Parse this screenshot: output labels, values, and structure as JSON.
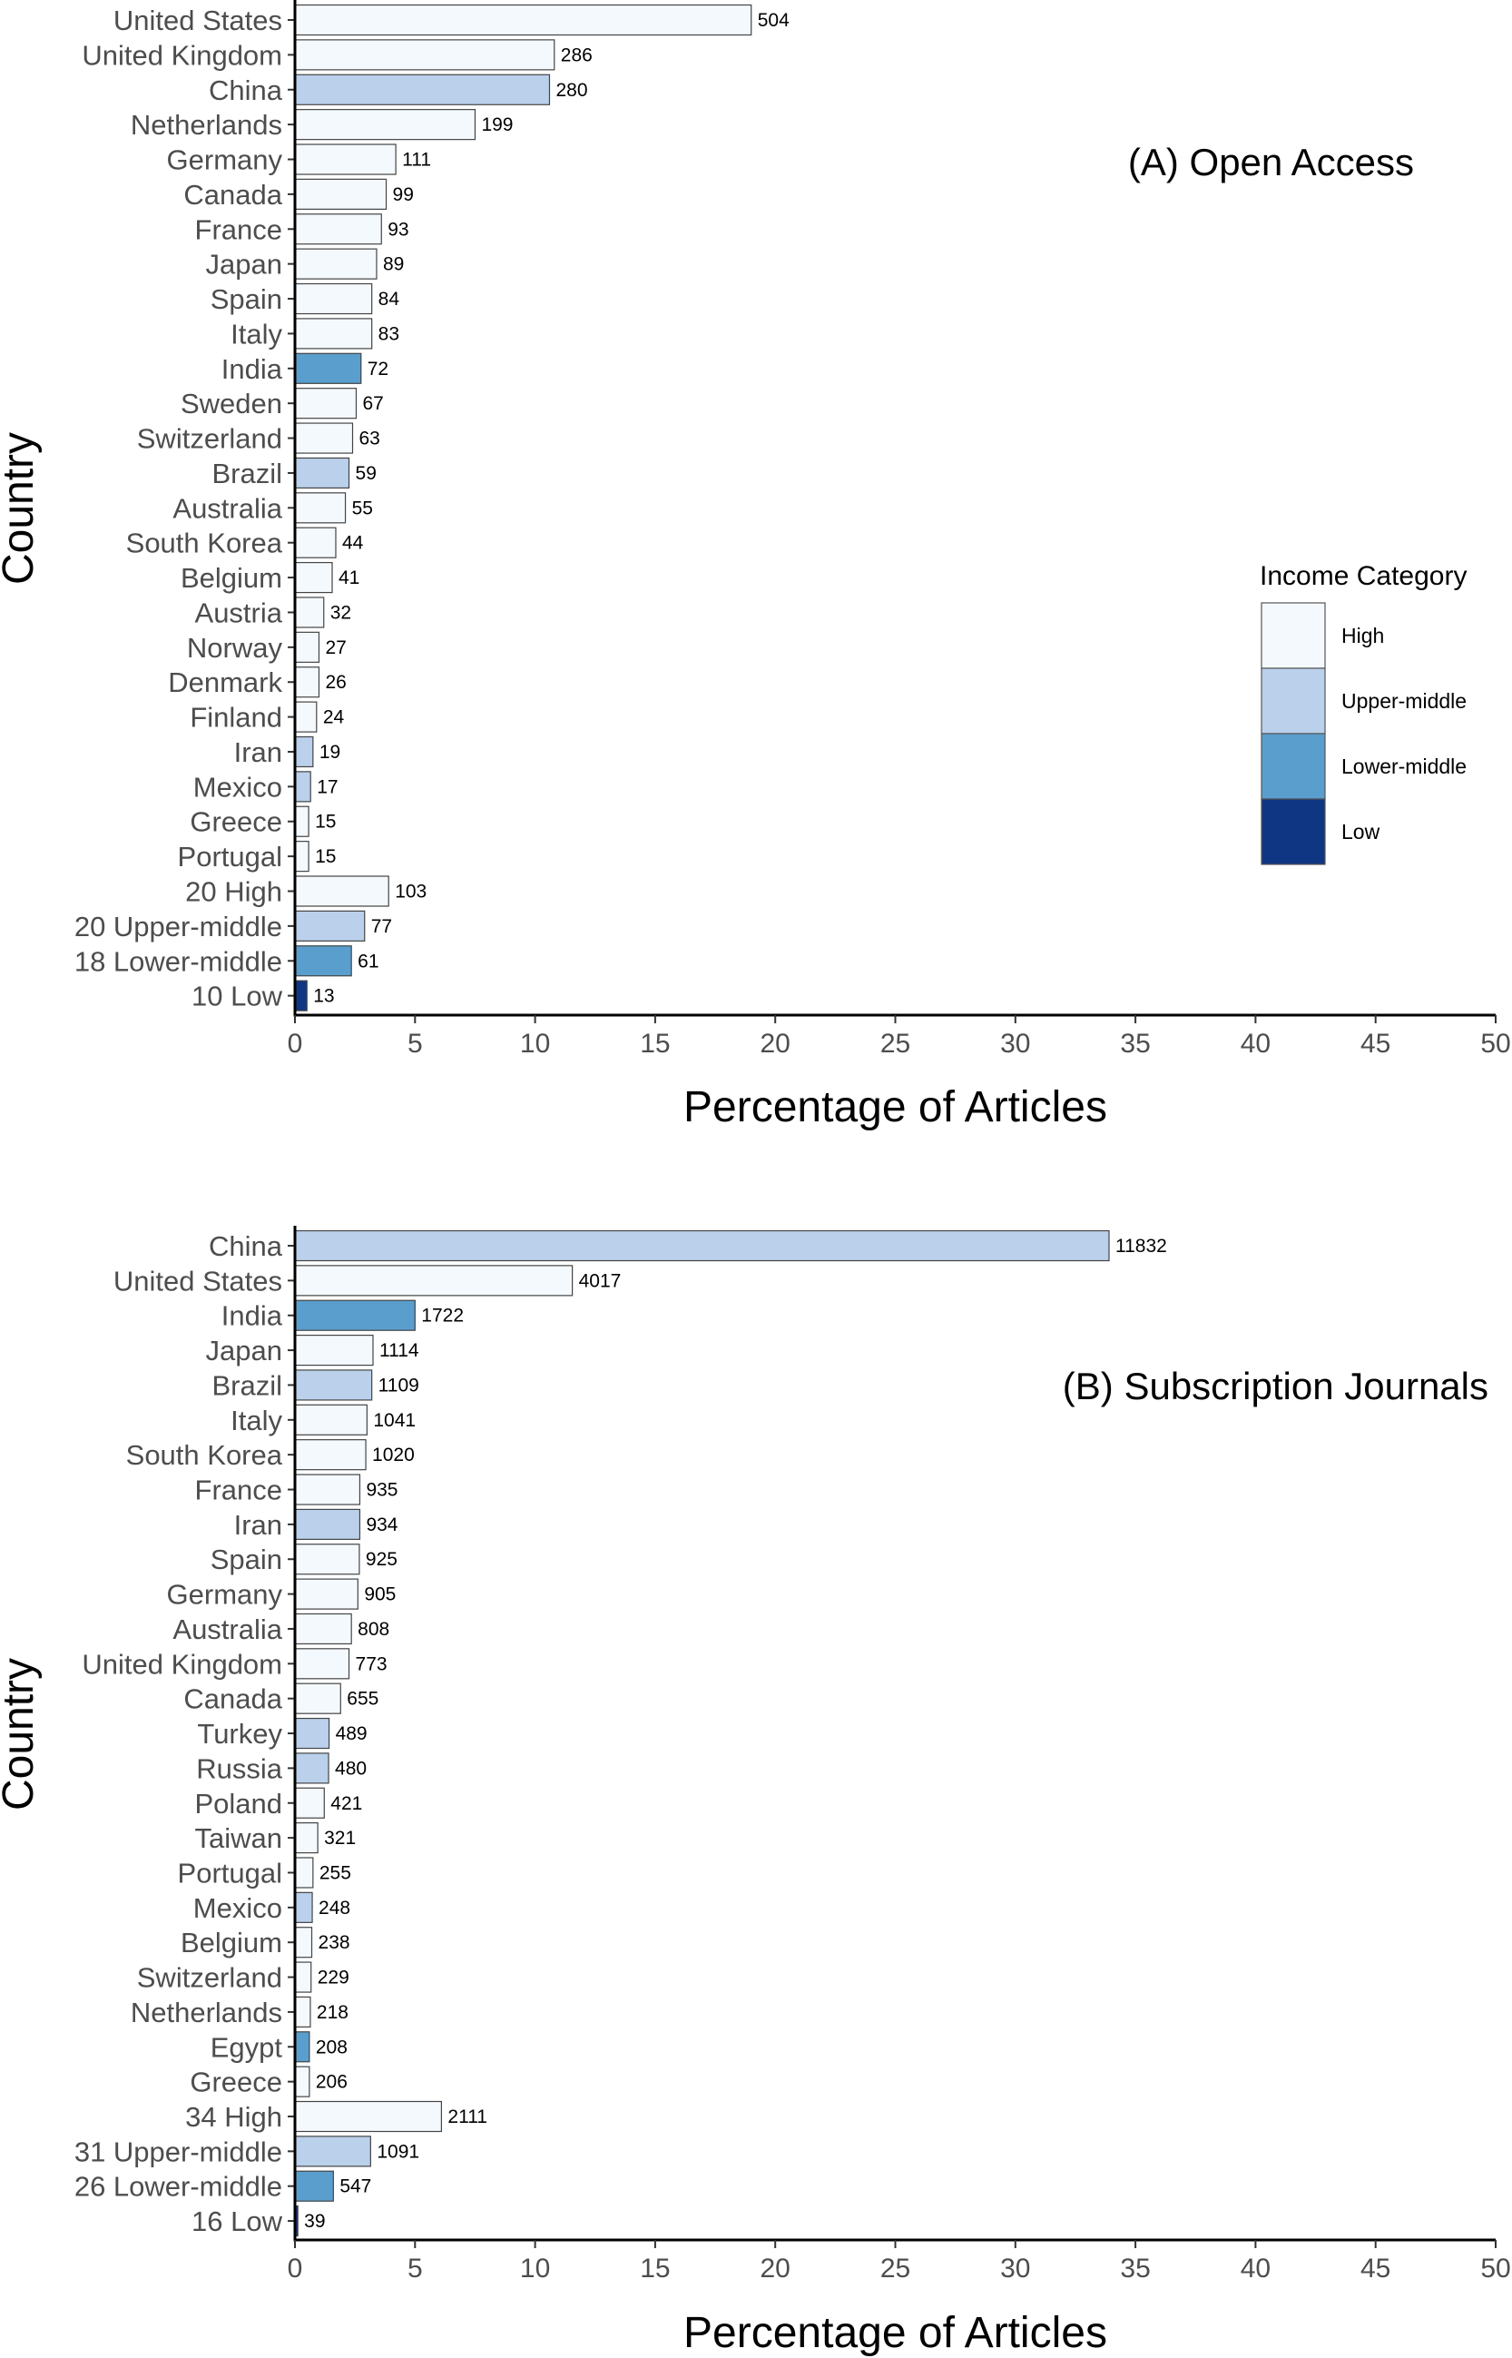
{
  "legend": {
    "title": "Income Category",
    "entries": [
      {
        "key": "High",
        "label": "High",
        "color": "#f4f9fe"
      },
      {
        "key": "Upper-middle",
        "label": "Upper-middle",
        "color": "#bad0eb"
      },
      {
        "key": "Lower-middle",
        "label": "Lower-middle",
        "color": "#5a9ecd"
      },
      {
        "key": "Low",
        "label": "Low",
        "color": "#0f3682"
      }
    ]
  },
  "chart_data": [
    {
      "type": "bar",
      "orientation": "horizontal",
      "title": "(A) Open Access",
      "xlabel": "Percentage of Articles",
      "ylabel": "Country",
      "xlim": [
        0,
        50
      ],
      "xticks": [
        0,
        5,
        10,
        15,
        20,
        25,
        30,
        35,
        40,
        45,
        50
      ],
      "grid": false,
      "bars": [
        {
          "category": "United States",
          "percent": 19.0,
          "count": "504",
          "income": "High"
        },
        {
          "category": "United Kingdom",
          "percent": 10.8,
          "count": "286",
          "income": "High"
        },
        {
          "category": "China",
          "percent": 10.6,
          "count": "280",
          "income": "Upper-middle"
        },
        {
          "category": "Netherlands",
          "percent": 7.5,
          "count": "199",
          "income": "High"
        },
        {
          "category": "Germany",
          "percent": 4.2,
          "count": "111",
          "income": "High"
        },
        {
          "category": "Canada",
          "percent": 3.8,
          "count": "99",
          "income": "High"
        },
        {
          "category": "France",
          "percent": 3.6,
          "count": "93",
          "income": "High"
        },
        {
          "category": "Japan",
          "percent": 3.4,
          "count": "89",
          "income": "High"
        },
        {
          "category": "Spain",
          "percent": 3.2,
          "count": "84",
          "income": "High"
        },
        {
          "category": "Italy",
          "percent": 3.2,
          "count": "83",
          "income": "High"
        },
        {
          "category": "India",
          "percent": 2.75,
          "count": "72",
          "income": "Lower-middle"
        },
        {
          "category": "Sweden",
          "percent": 2.55,
          "count": "67",
          "income": "High"
        },
        {
          "category": "Switzerland",
          "percent": 2.4,
          "count": "63",
          "income": "High"
        },
        {
          "category": "Brazil",
          "percent": 2.25,
          "count": "59",
          "income": "Upper-middle"
        },
        {
          "category": "Australia",
          "percent": 2.1,
          "count": "55",
          "income": "High"
        },
        {
          "category": "South Korea",
          "percent": 1.7,
          "count": "44",
          "income": "High"
        },
        {
          "category": "Belgium",
          "percent": 1.55,
          "count": "41",
          "income": "High"
        },
        {
          "category": "Austria",
          "percent": 1.2,
          "count": "32",
          "income": "High"
        },
        {
          "category": "Norway",
          "percent": 1.0,
          "count": "27",
          "income": "High"
        },
        {
          "category": "Denmark",
          "percent": 1.0,
          "count": "26",
          "income": "High"
        },
        {
          "category": "Finland",
          "percent": 0.9,
          "count": "24",
          "income": "High"
        },
        {
          "category": "Iran",
          "percent": 0.75,
          "count": "19",
          "income": "Upper-middle"
        },
        {
          "category": "Mexico",
          "percent": 0.65,
          "count": "17",
          "income": "Upper-middle"
        },
        {
          "category": "Greece",
          "percent": 0.57,
          "count": "15",
          "income": "High"
        },
        {
          "category": "Portugal",
          "percent": 0.57,
          "count": "15",
          "income": "High"
        },
        {
          "category": "20 High",
          "percent": 3.9,
          "count": "103",
          "income": "High"
        },
        {
          "category": "20 Upper-middle",
          "percent": 2.9,
          "count": "77",
          "income": "Upper-middle"
        },
        {
          "category": "18 Lower-middle",
          "percent": 2.35,
          "count": "61",
          "income": "Lower-middle"
        },
        {
          "category": "10 Low",
          "percent": 0.5,
          "count": "13",
          "income": "Low"
        }
      ]
    },
    {
      "type": "bar",
      "orientation": "horizontal",
      "title": "(B) Subscription Journals",
      "xlabel": "Percentage of Articles",
      "ylabel": "Country",
      "xlim": [
        0,
        50
      ],
      "xticks": [
        0,
        5,
        10,
        15,
        20,
        25,
        30,
        35,
        40,
        45,
        50
      ],
      "grid": false,
      "bars": [
        {
          "category": "China",
          "percent": 33.9,
          "count": "11832",
          "income": "Upper-middle"
        },
        {
          "category": "United States",
          "percent": 11.55,
          "count": "4017",
          "income": "High"
        },
        {
          "category": "India",
          "percent": 5.0,
          "count": "1722",
          "income": "Lower-middle"
        },
        {
          "category": "Japan",
          "percent": 3.25,
          "count": "1114",
          "income": "High"
        },
        {
          "category": "Brazil",
          "percent": 3.2,
          "count": "1109",
          "income": "Upper-middle"
        },
        {
          "category": "Italy",
          "percent": 3.0,
          "count": "1041",
          "income": "High"
        },
        {
          "category": "South Korea",
          "percent": 2.95,
          "count": "1020",
          "income": "High"
        },
        {
          "category": "France",
          "percent": 2.7,
          "count": "935",
          "income": "High"
        },
        {
          "category": "Iran",
          "percent": 2.7,
          "count": "934",
          "income": "Upper-middle"
        },
        {
          "category": "Spain",
          "percent": 2.68,
          "count": "925",
          "income": "High"
        },
        {
          "category": "Germany",
          "percent": 2.62,
          "count": "905",
          "income": "High"
        },
        {
          "category": "Australia",
          "percent": 2.35,
          "count": "808",
          "income": "High"
        },
        {
          "category": "United Kingdom",
          "percent": 2.25,
          "count": "773",
          "income": "High"
        },
        {
          "category": "Canada",
          "percent": 1.9,
          "count": "655",
          "income": "High"
        },
        {
          "category": "Turkey",
          "percent": 1.42,
          "count": "489",
          "income": "Upper-middle"
        },
        {
          "category": "Russia",
          "percent": 1.4,
          "count": "480",
          "income": "Upper-middle"
        },
        {
          "category": "Poland",
          "percent": 1.22,
          "count": "421",
          "income": "High"
        },
        {
          "category": "Taiwan",
          "percent": 0.95,
          "count": "321",
          "income": "High"
        },
        {
          "category": "Portugal",
          "percent": 0.75,
          "count": "255",
          "income": "High"
        },
        {
          "category": "Mexico",
          "percent": 0.72,
          "count": "248",
          "income": "Upper-middle"
        },
        {
          "category": "Belgium",
          "percent": 0.7,
          "count": "238",
          "income": "High"
        },
        {
          "category": "Switzerland",
          "percent": 0.67,
          "count": "229",
          "income": "High"
        },
        {
          "category": "Netherlands",
          "percent": 0.64,
          "count": "218",
          "income": "High"
        },
        {
          "category": "Egypt",
          "percent": 0.6,
          "count": "208",
          "income": "Lower-middle"
        },
        {
          "category": "Greece",
          "percent": 0.6,
          "count": "206",
          "income": "High"
        },
        {
          "category": "34 High",
          "percent": 6.1,
          "count": "2111",
          "income": "High"
        },
        {
          "category": "31 Upper-middle",
          "percent": 3.15,
          "count": "1091",
          "income": "Upper-middle"
        },
        {
          "category": "26 Lower-middle",
          "percent": 1.6,
          "count": "547",
          "income": "Lower-middle"
        },
        {
          "category": "16 Low",
          "percent": 0.12,
          "count": "39",
          "income": "Low"
        }
      ]
    }
  ]
}
